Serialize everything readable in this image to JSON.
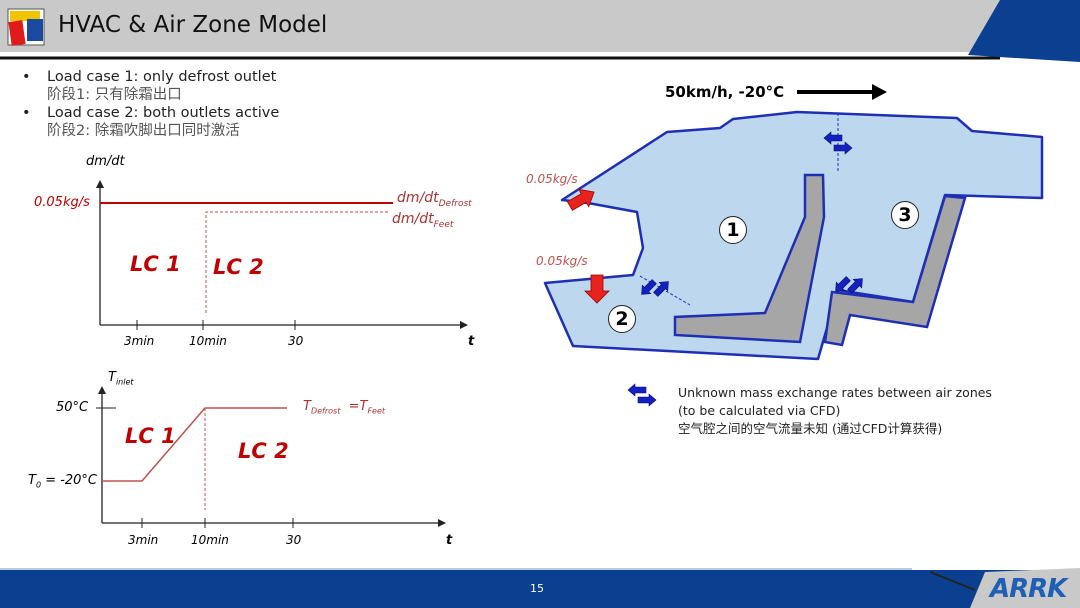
{
  "header": {
    "title": "HVAC & Air Zone Model"
  },
  "bullets": [
    {
      "en": "Load case 1: only defrost outlet",
      "cn": "阶段1: 只有除霜出口"
    },
    {
      "en": "Load case 2: both outlets active",
      "cn": "阶段2: 除霜吹脚出口同时激活"
    }
  ],
  "plot1": {
    "ylabel": "dm/dt",
    "xlabel": "t",
    "yvalue_label": "0.05kg/s",
    "xticks": [
      "3min",
      "10min",
      "30"
    ],
    "series": [
      {
        "name": "dm/dt",
        "sub": "Defrost"
      },
      {
        "name": "dm/dt",
        "sub": "Feet"
      }
    ],
    "regions": [
      "LC 1",
      "LC 2"
    ]
  },
  "plot2": {
    "ylabel": "T",
    "ylabel_sub": "inlet",
    "xlabel": "t",
    "yticks": [
      "50°C"
    ],
    "t0_label": "T",
    "t0_sub": "0",
    "t0_value": " = -20°C",
    "xticks": [
      "3min",
      "10min",
      "30"
    ],
    "curve_label": {
      "a": "T",
      "a_sub": "Defrost",
      "eq": "=T",
      "b_sub": "Feet"
    },
    "regions": [
      "LC 1",
      "LC 2"
    ]
  },
  "diagram": {
    "wind_label": "50km/h, -20°C",
    "flow_labels": [
      "0.05kg/s",
      "0.05kg/s"
    ],
    "zones": [
      "1",
      "2",
      "3"
    ],
    "legend": {
      "line1": "Unknown mass exchange rates between air zones",
      "line2": "(to be calculated via CFD)",
      "line3": "空气腔之间的空气流量未知 (通过CFD计算获得)"
    }
  },
  "footer": {
    "page": "15",
    "logo": "ARRK"
  },
  "colors": {
    "accent_red": "#c00000",
    "zone_fill": "#bdd7ee",
    "zone_stroke": "#1f2fb5",
    "footer_blue": "#0b3f8f"
  }
}
